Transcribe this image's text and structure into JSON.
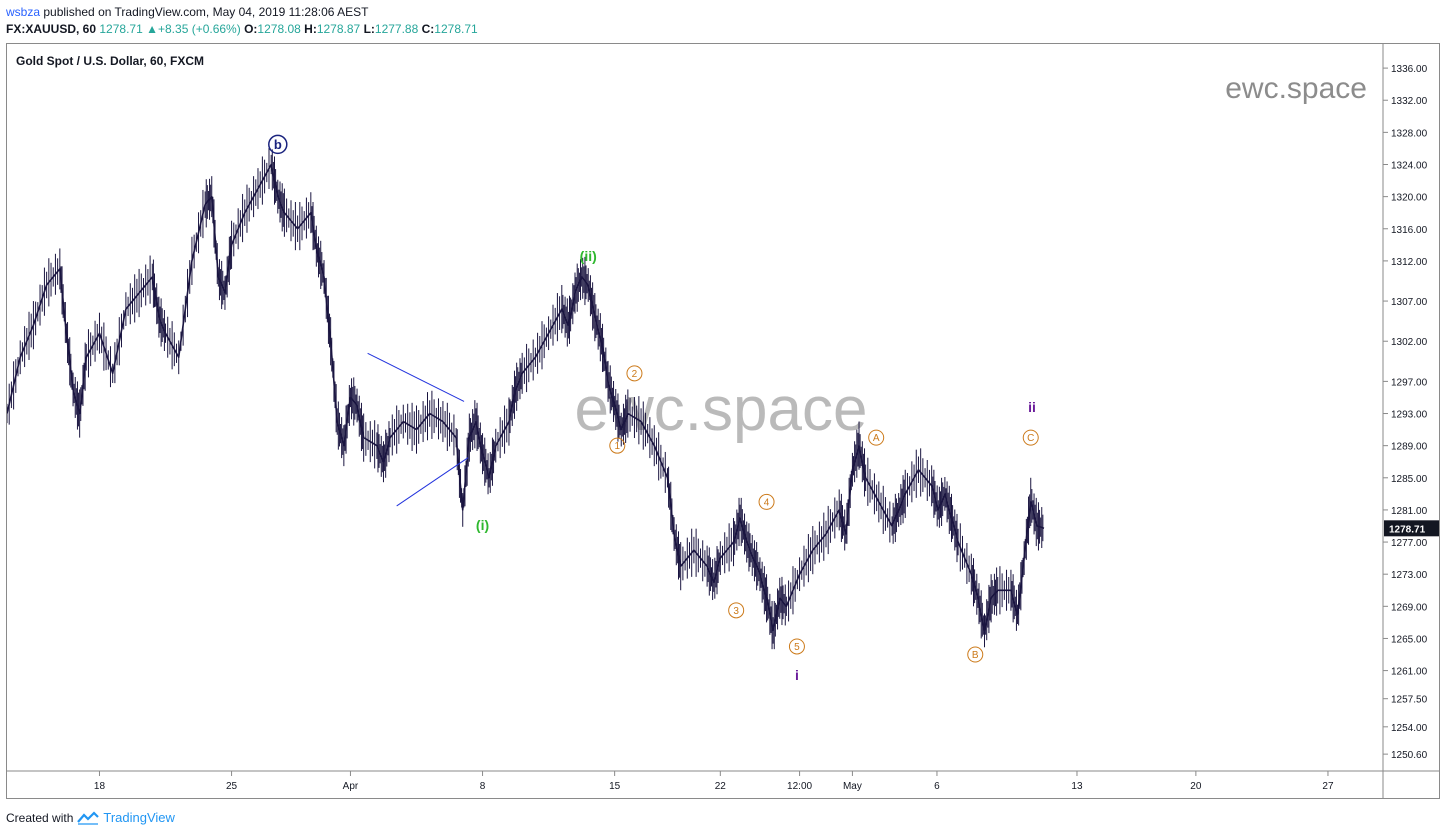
{
  "header": {
    "user": "wsbza",
    "published": "published on TradingView.com, May 04, 2019 11:28:06 AEST"
  },
  "ohlc": {
    "symbol": "FX:XAUUSD, 60",
    "last": "1278.71",
    "change": "+8.35 (+0.66%)",
    "o_label": "O:",
    "o": "1278.08",
    "h_label": "H:",
    "h": "1278.87",
    "l_label": "L:",
    "l": "1277.88",
    "c_label": "C:",
    "c": "1278.71"
  },
  "footer": {
    "created": "Created with",
    "brand": "TradingView"
  },
  "colors": {
    "candle": "#1a1540",
    "green_wave": "#2eb82e",
    "orange_wave": "#cc7a1a",
    "navy_wave": "#1a237e",
    "purple_wave": "#6a1b9a",
    "triangle": "#2233dd",
    "watermark": "#8c8c8c",
    "price_tag": "#131722"
  },
  "chart_data": {
    "type": "line",
    "title": "Gold Spot / U.S. Dollar, 60, FXCM",
    "watermark": "ewc.space",
    "last_price_tag": "1278.71",
    "xlabel": "",
    "ylabel": "",
    "ylim": [
      1248.5,
      1339.0
    ],
    "grid": false,
    "x_ticks": [
      "18",
      "25",
      "Apr",
      "8",
      "15",
      "22",
      "12:00",
      "May",
      "6",
      "13",
      "20",
      "27"
    ],
    "y_ticks": [
      "1336.00",
      "1332.00",
      "1328.00",
      "1324.00",
      "1320.00",
      "1316.00",
      "1312.00",
      "1307.00",
      "1302.00",
      "1297.00",
      "1293.00",
      "1289.00",
      "1285.00",
      "1281.00",
      "1277.00",
      "1273.00",
      "1269.00",
      "1265.00",
      "1261.00",
      "1257.50",
      "1254.00",
      "1250.60"
    ],
    "y_tick_values": [
      1336.0,
      1332.0,
      1328.0,
      1324.0,
      1320.0,
      1316.0,
      1312.0,
      1307.0,
      1302.0,
      1297.0,
      1293.0,
      1289.0,
      1285.0,
      1281.0,
      1277.0,
      1273.0,
      1269.0,
      1265.0,
      1261.0,
      1257.5,
      1254.0,
      1250.6
    ],
    "x_tick_index": [
      0.07,
      0.17,
      0.26,
      0.36,
      0.46,
      0.54,
      0.6,
      0.64,
      0.704,
      0.81,
      0.9,
      1.0
    ],
    "series": [
      {
        "values": [
          [
            0.0,
            1293
          ],
          [
            0.01,
            1300
          ],
          [
            0.02,
            1304
          ],
          [
            0.03,
            1309
          ],
          [
            0.04,
            1311
          ],
          [
            0.045,
            1303
          ],
          [
            0.05,
            1296
          ],
          [
            0.055,
            1293
          ],
          [
            0.06,
            1300
          ],
          [
            0.07,
            1303
          ],
          [
            0.08,
            1298
          ],
          [
            0.09,
            1306
          ],
          [
            0.1,
            1308
          ],
          [
            0.11,
            1310
          ],
          [
            0.115,
            1305
          ],
          [
            0.12,
            1303
          ],
          [
            0.13,
            1300
          ],
          [
            0.14,
            1312
          ],
          [
            0.15,
            1319
          ],
          [
            0.155,
            1320
          ],
          [
            0.16,
            1310
          ],
          [
            0.165,
            1308
          ],
          [
            0.17,
            1314
          ],
          [
            0.18,
            1318
          ],
          [
            0.19,
            1321
          ],
          [
            0.2,
            1324
          ],
          [
            0.205,
            1320
          ],
          [
            0.21,
            1318
          ],
          [
            0.22,
            1316
          ],
          [
            0.23,
            1318
          ],
          [
            0.235,
            1313
          ],
          [
            0.24,
            1310
          ],
          [
            0.245,
            1302
          ],
          [
            0.25,
            1292
          ],
          [
            0.255,
            1289
          ],
          [
            0.26,
            1295
          ],
          [
            0.265,
            1294
          ],
          [
            0.27,
            1290
          ],
          [
            0.28,
            1289
          ],
          [
            0.285,
            1287
          ],
          [
            0.29,
            1290
          ],
          [
            0.3,
            1292
          ],
          [
            0.31,
            1291
          ],
          [
            0.32,
            1293
          ],
          [
            0.33,
            1292
          ],
          [
            0.34,
            1290
          ],
          [
            0.345,
            1281
          ],
          [
            0.35,
            1290
          ],
          [
            0.355,
            1292
          ],
          [
            0.36,
            1288
          ],
          [
            0.365,
            1285
          ],
          [
            0.37,
            1289
          ],
          [
            0.38,
            1292
          ],
          [
            0.385,
            1296
          ],
          [
            0.39,
            1298
          ],
          [
            0.4,
            1300
          ],
          [
            0.41,
            1303
          ],
          [
            0.42,
            1306
          ],
          [
            0.425,
            1304
          ],
          [
            0.43,
            1308
          ],
          [
            0.435,
            1310
          ],
          [
            0.44,
            1309
          ],
          [
            0.445,
            1305
          ],
          [
            0.45,
            1302
          ],
          [
            0.455,
            1297
          ],
          [
            0.46,
            1294
          ],
          [
            0.465,
            1291
          ],
          [
            0.47,
            1293
          ],
          [
            0.48,
            1292
          ],
          [
            0.49,
            1289
          ],
          [
            0.5,
            1285
          ],
          [
            0.505,
            1278
          ],
          [
            0.51,
            1274
          ],
          [
            0.52,
            1276
          ],
          [
            0.53,
            1274
          ],
          [
            0.535,
            1272
          ],
          [
            0.54,
            1275
          ],
          [
            0.55,
            1277
          ],
          [
            0.555,
            1280
          ],
          [
            0.56,
            1277
          ],
          [
            0.565,
            1275
          ],
          [
            0.57,
            1273
          ],
          [
            0.575,
            1270
          ],
          [
            0.58,
            1266
          ],
          [
            0.585,
            1270
          ],
          [
            0.59,
            1269
          ],
          [
            0.6,
            1273
          ],
          [
            0.61,
            1276
          ],
          [
            0.62,
            1278
          ],
          [
            0.63,
            1281
          ],
          [
            0.635,
            1278
          ],
          [
            0.64,
            1286
          ],
          [
            0.645,
            1289
          ],
          [
            0.65,
            1285
          ],
          [
            0.66,
            1282
          ],
          [
            0.67,
            1279
          ],
          [
            0.675,
            1281
          ],
          [
            0.68,
            1283
          ],
          [
            0.69,
            1286
          ],
          [
            0.7,
            1284
          ],
          [
            0.705,
            1281
          ],
          [
            0.71,
            1283
          ],
          [
            0.715,
            1280
          ],
          [
            0.72,
            1277
          ],
          [
            0.73,
            1273
          ],
          [
            0.735,
            1270
          ],
          [
            0.74,
            1266
          ],
          [
            0.745,
            1270
          ],
          [
            0.75,
            1271
          ],
          [
            0.76,
            1271
          ],
          [
            0.765,
            1268
          ],
          [
            0.77,
            1275
          ],
          [
            0.775,
            1282
          ],
          [
            0.78,
            1279
          ],
          [
            0.785,
            1278.71
          ]
        ]
      }
    ],
    "annotations": [
      {
        "text": "b",
        "style": "navy-circle",
        "x": 0.205,
        "y": 1326.5
      },
      {
        "text": "(ii)",
        "style": "green",
        "x": 0.44,
        "y": 1312
      },
      {
        "text": "(i)",
        "style": "green",
        "x": 0.36,
        "y": 1278.5
      },
      {
        "text": "2",
        "style": "orange-circle",
        "x": 0.475,
        "y": 1298
      },
      {
        "text": "1",
        "style": "orange-circle",
        "x": 0.462,
        "y": 1289
      },
      {
        "text": "4",
        "style": "orange-circle",
        "x": 0.575,
        "y": 1282
      },
      {
        "text": "3",
        "style": "orange-circle",
        "x": 0.552,
        "y": 1268.5
      },
      {
        "text": "5",
        "style": "orange-circle",
        "x": 0.598,
        "y": 1264
      },
      {
        "text": "i",
        "style": "purple",
        "x": 0.598,
        "y": 1259.8
      },
      {
        "text": "A",
        "style": "orange-circle",
        "x": 0.658,
        "y": 1290
      },
      {
        "text": "B",
        "style": "orange-circle",
        "x": 0.733,
        "y": 1263
      },
      {
        "text": "C",
        "style": "orange-circle",
        "x": 0.775,
        "y": 1290
      },
      {
        "text": "ii",
        "style": "purple",
        "x": 0.776,
        "y": 1293.2
      }
    ],
    "triangle": [
      {
        "from": [
          0.273,
          1300.5
        ],
        "to": [
          0.346,
          1294.5
        ]
      },
      {
        "from": [
          0.295,
          1281.5
        ],
        "to": [
          0.349,
          1287.5
        ]
      }
    ]
  }
}
